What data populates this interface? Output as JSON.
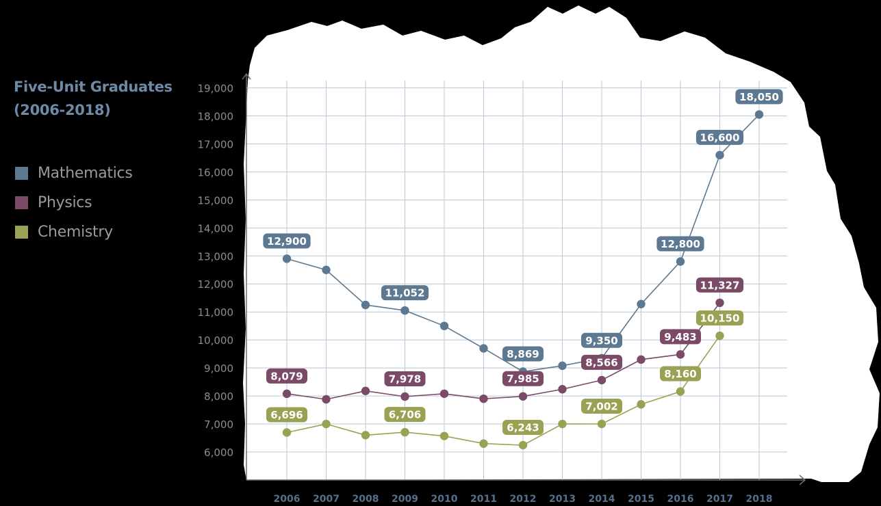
{
  "chart_data": {
    "type": "line",
    "title_lines": [
      "Five-Unit Graduates",
      "(2006-2018)"
    ],
    "categories": [
      "2006",
      "2007",
      "2008",
      "2009",
      "2010",
      "2011",
      "2012",
      "2013",
      "2014",
      "2015",
      "2016",
      "2017",
      "2018"
    ],
    "y_ticks": [
      "6,000",
      "7,000",
      "8,000",
      "9,000",
      "10,000",
      "11,000",
      "12,000",
      "13,000",
      "14,000",
      "15,000",
      "16,000",
      "17,000",
      "18,000",
      "19,000"
    ],
    "ylim": [
      5000,
      19500
    ],
    "grid": true,
    "legend_position": "left",
    "series": [
      {
        "name": "Mathematics",
        "color": "#5d7891",
        "values": [
          12900,
          12500,
          11250,
          11052,
          10500,
          9700,
          8869,
          9080,
          9350,
          11280,
          12800,
          16600,
          18050
        ],
        "labels": [
          "12,900",
          null,
          null,
          "11,052",
          null,
          null,
          "8,869",
          null,
          "9,350",
          null,
          "12,800",
          "16,600",
          "18,050"
        ]
      },
      {
        "name": "Physics",
        "color": "#7a4a66",
        "values": [
          8079,
          7880,
          8180,
          7978,
          8080,
          7900,
          7985,
          8240,
          8566,
          9300,
          9483,
          11327,
          null
        ],
        "labels": [
          "8,079",
          null,
          null,
          "7,978",
          null,
          null,
          "7,985",
          null,
          "8,566",
          null,
          "9,483",
          "11,327",
          null
        ]
      },
      {
        "name": "Chemistry",
        "color": "#9aa153",
        "values": [
          6696,
          7000,
          6600,
          6706,
          6570,
          6300,
          6243,
          7000,
          7002,
          7700,
          8160,
          10150,
          null
        ],
        "labels": [
          "6,696",
          null,
          null,
          "6,706",
          null,
          null,
          "6,243",
          null,
          "7,002",
          null,
          "8,160",
          "10,150",
          null
        ]
      }
    ]
  }
}
